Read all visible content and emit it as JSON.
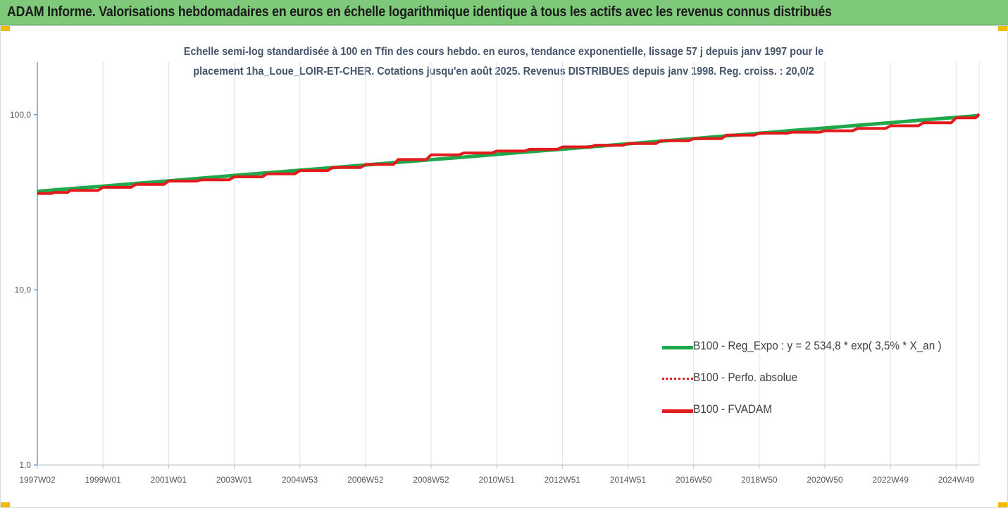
{
  "header": {
    "title": "ADAM Informe. Valorisations hebdomadaires en euros en échelle logarithmique identique à tous les actifs avec les revenus connus distribués"
  },
  "colors": {
    "header_bg": "#7fc97a",
    "accent_corner": "#f2b900",
    "reg_expo": "#1fa84b",
    "perfo_absolue": "#e31a1c",
    "fvadam": "#e31a1c",
    "subtitle_text": "#44546a"
  },
  "chart_data": {
    "type": "line",
    "title_lines": [
      "Echelle semi-log standardisée à 100 en Tfin des cours hebdo. en euros, tendance exponentielle, lissage 57 j depuis janv 1997 pour le",
      "placement 1ha_Loue_LOIR-ET-CHER. Cotations jusqu'en août 2025. Revenus DISTRIBUES depuis janv 1998. Reg. croiss. : 20,0/2"
    ],
    "y_scale": "log",
    "ylim": [
      1,
      200
    ],
    "yticks": [
      {
        "value": 1,
        "label": "1,0"
      },
      {
        "value": 10,
        "label": "10,0"
      },
      {
        "value": 100,
        "label": "100,0"
      }
    ],
    "xlim": [
      1997.0,
      2025.7
    ],
    "xticks": [
      {
        "x": 1997.0,
        "label": "1997W02"
      },
      {
        "x": 1999.0,
        "label": "1999W01"
      },
      {
        "x": 2001.0,
        "label": "2001W01"
      },
      {
        "x": 2003.0,
        "label": "2003W01"
      },
      {
        "x": 2005.0,
        "label": "2004W53"
      },
      {
        "x": 2007.0,
        "label": "2006W52"
      },
      {
        "x": 2009.0,
        "label": "2008W52"
      },
      {
        "x": 2011.0,
        "label": "2010W51"
      },
      {
        "x": 2013.0,
        "label": "2012W51"
      },
      {
        "x": 2015.0,
        "label": "2014W51"
      },
      {
        "x": 2017.0,
        "label": "2016W50"
      },
      {
        "x": 2019.0,
        "label": "2018W50"
      },
      {
        "x": 2021.0,
        "label": "2020W50"
      },
      {
        "x": 2023.0,
        "label": "2022W49"
      },
      {
        "x": 2025.0,
        "label": "2024W49"
      }
    ],
    "grid": "vertical",
    "legend_position": "bottom-right",
    "series": [
      {
        "name": "B100 - Reg_Expo : y = 2 534,8 * exp( 3,5% *  X_an )",
        "style": "solid-thick",
        "color": "#1fa84b",
        "x": [
          1997.0,
          1998.0,
          1999.0,
          2000.0,
          2001.0,
          2002.0,
          2003.0,
          2004.0,
          2005.0,
          2006.0,
          2007.0,
          2008.0,
          2009.0,
          2010.0,
          2011.0,
          2012.0,
          2013.0,
          2014.0,
          2015.0,
          2016.0,
          2017.0,
          2018.0,
          2019.0,
          2020.0,
          2021.0,
          2022.0,
          2023.0,
          2024.0,
          2025.0,
          2025.7
        ],
        "values": [
          36.5,
          37.8,
          39.1,
          40.5,
          41.9,
          43.4,
          45.0,
          46.6,
          48.2,
          49.9,
          51.7,
          53.5,
          55.4,
          57.3,
          59.4,
          61.5,
          63.6,
          65.9,
          68.2,
          70.6,
          73.1,
          75.7,
          78.4,
          81.2,
          84.0,
          87.0,
          90.1,
          93.3,
          96.6,
          98.9
        ]
      },
      {
        "name": "B100 - Perfo. absolue",
        "style": "dotted",
        "color": "#e31a1c",
        "x": [
          1997.0,
          1997.5,
          1998.0,
          1999.0,
          2000.0,
          2001.0,
          2002.0,
          2003.0,
          2004.0,
          2005.0,
          2006.0,
          2007.0,
          2008.0,
          2009.0,
          2010.0,
          2011.0,
          2012.0,
          2013.0,
          2014.0,
          2015.0,
          2016.0,
          2017.0,
          2018.0,
          2019.0,
          2020.0,
          2021.0,
          2022.0,
          2023.0,
          2024.0,
          2025.0,
          2025.7
        ],
        "values": [
          35.5,
          36.0,
          37.0,
          38.5,
          40.0,
          41.8,
          42.5,
          44.2,
          46.0,
          48.0,
          50.0,
          52.0,
          55.5,
          59.0,
          60.5,
          62.0,
          63.5,
          65.5,
          67.0,
          68.5,
          71.0,
          73.0,
          76.5,
          78.5,
          79.5,
          81.0,
          83.5,
          86.5,
          90.0,
          96.0,
          101.0
        ]
      },
      {
        "name": "B100 - FVADAM",
        "style": "solid-thick",
        "color": "#e31a1c",
        "x": [
          1997.0,
          1997.5,
          1998.0,
          1999.0,
          2000.0,
          2001.0,
          2002.0,
          2003.0,
          2004.0,
          2005.0,
          2006.0,
          2007.0,
          2008.0,
          2009.0,
          2010.0,
          2011.0,
          2012.0,
          2013.0,
          2014.0,
          2015.0,
          2016.0,
          2017.0,
          2018.0,
          2019.0,
          2020.0,
          2021.0,
          2022.0,
          2023.0,
          2024.0,
          2025.0,
          2025.7
        ],
        "values": [
          35.5,
          36.0,
          37.0,
          38.5,
          40.0,
          41.8,
          42.5,
          44.2,
          46.0,
          48.0,
          50.0,
          52.0,
          55.5,
          59.0,
          60.5,
          62.0,
          63.5,
          65.5,
          67.0,
          68.5,
          71.0,
          73.0,
          76.5,
          78.5,
          79.5,
          81.0,
          83.5,
          86.5,
          90.0,
          96.0,
          101.0
        ]
      }
    ]
  }
}
